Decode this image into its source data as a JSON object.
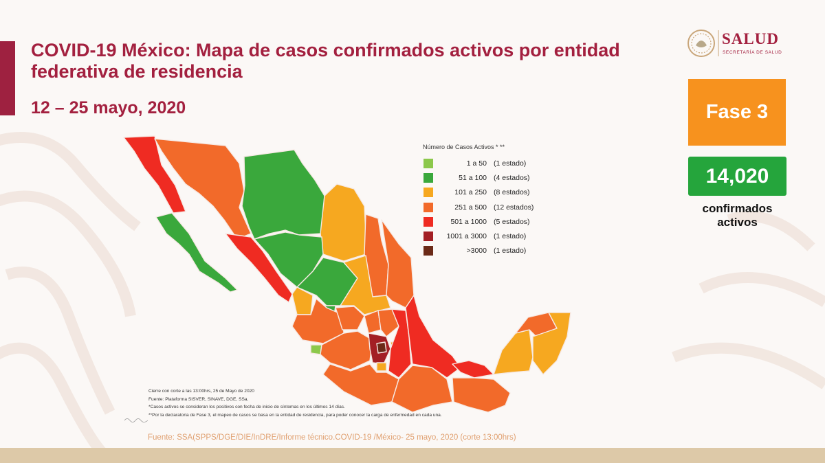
{
  "title": "COVID-19 México: Mapa de casos confirmados activos por entidad federativa de residencia",
  "dates": "12 – 25 mayo, 2020",
  "logo": {
    "name": "SALUD",
    "subtitle": "SECRETARÍA DE SALUD"
  },
  "phase_label": "Fase 3",
  "active_count": "14,020",
  "active_label": "confirmados activos",
  "colors": {
    "brand": "#a3203f",
    "phase": "#f7921e",
    "count": "#25a53c",
    "c_1_50": "#8cc84b",
    "c_51_100": "#3aa83c",
    "c_101_250": "#f6a820",
    "c_251_500": "#f26a2a",
    "c_501_1000": "#ef2b22",
    "c_1001_3000": "#a31f24",
    "c_gt3000": "#6b2a18"
  },
  "legend": {
    "title": "Número de Casos Activos * **",
    "items": [
      {
        "range": "1 a 50",
        "count": "(1 estado)",
        "color": "#8cc84b"
      },
      {
        "range": "51 a 100",
        "count": "(4 estados)",
        "color": "#3aa83c"
      },
      {
        "range": "101 a 250",
        "count": "(8 estados)",
        "color": "#f6a820"
      },
      {
        "range": "251 a 500",
        "count": "(12 estados)",
        "color": "#f26a2a"
      },
      {
        "range": "501 a 1000",
        "count": "(5 estados)",
        "color": "#ef2b22"
      },
      {
        "range": "1001 a 3000",
        "count": "(1 estado)",
        "color": "#a31f24"
      },
      {
        "range": ">3000",
        "count": "(1 estado)",
        "color": "#6b2a18"
      }
    ]
  },
  "notes": [
    "Cierre con corte a las 13:00hrs, 25 de Mayo de 2020",
    "Fuente: Plataforma SISVER, SINAVE, DGE, SSa.",
    "*Casos activos se consideran los positivos con fecha de inicio de síntomas en los últimos 14 días.",
    "**Por la declaratoria de Fase 3, el mapeo de casos se basa en la entidad de residencia, para poder conocer la carga de enfermedad en cada una."
  ],
  "source": "Fuente: SSA(SPPS/DGE/DIE/InDRE/Informe técnico.COVID-19 /México- 25 mayo, 2020 (corte 13:00hrs)"
}
